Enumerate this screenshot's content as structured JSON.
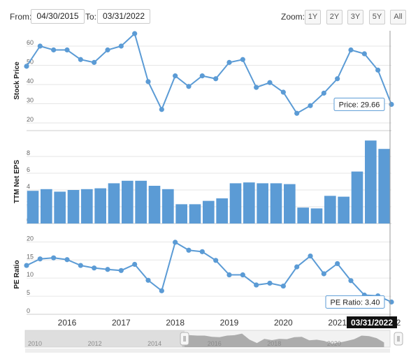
{
  "controls": {
    "from_label": "From:",
    "from_value": "04/30/2015",
    "to_label": "To:",
    "to_value": "03/31/2022",
    "zoom_label": "Zoom:",
    "zoom_buttons": [
      "1Y",
      "2Y",
      "3Y",
      "5Y",
      "All"
    ]
  },
  "colors": {
    "line": "#5b9bd5",
    "bar": "#5b9bd5",
    "grid": "#e6e6e6",
    "axis": "#333333"
  },
  "chart_data": [
    {
      "type": "line",
      "ylabel": "Stock Price",
      "ylim": [
        16,
        68
      ],
      "yticks": [
        20,
        30,
        40,
        50,
        60
      ],
      "x": [
        2015.25,
        2015.5,
        2015.75,
        2016.0,
        2016.25,
        2016.5,
        2016.75,
        2017.0,
        2017.25,
        2017.5,
        2017.75,
        2018.0,
        2018.25,
        2018.5,
        2018.75,
        2019.0,
        2019.25,
        2019.5,
        2019.75,
        2020.0,
        2020.25,
        2020.5,
        2020.75,
        2021.0,
        2021.25,
        2021.5,
        2021.75,
        2022.0
      ],
      "values": [
        49.5,
        60,
        58,
        58,
        53,
        51.5,
        58,
        60,
        66.5,
        41.5,
        27,
        44.5,
        39,
        44.5,
        43,
        51.5,
        53,
        38.5,
        41,
        36,
        25,
        29,
        35.5,
        43,
        58,
        56,
        47.5,
        29.66
      ],
      "tooltip": "Price: 29.66"
    },
    {
      "type": "bar",
      "ylabel": "TTM Net EPS",
      "ylim": [
        0,
        10
      ],
      "yticks": [
        0,
        2,
        4,
        6,
        8
      ],
      "x": [
        2015.25,
        2015.5,
        2015.75,
        2016.0,
        2016.25,
        2016.5,
        2016.75,
        2017.0,
        2017.25,
        2017.5,
        2017.75,
        2018.0,
        2018.25,
        2018.5,
        2018.75,
        2019.0,
        2019.25,
        2019.5,
        2019.75,
        2020.0,
        2020.25,
        2020.5,
        2020.75,
        2021.0,
        2021.25,
        2021.5,
        2021.75
      ],
      "values": [
        3.9,
        4.1,
        3.8,
        4.0,
        4.1,
        4.2,
        4.8,
        5.1,
        5.1,
        4.5,
        4.1,
        2.3,
        2.3,
        2.7,
        3.0,
        4.8,
        4.9,
        4.8,
        4.8,
        4.7,
        1.9,
        1.8,
        3.3,
        3.2,
        6.2,
        9.9,
        8.9
      ]
    },
    {
      "type": "line",
      "ylabel": "PE Ratio",
      "ylim": [
        0,
        22
      ],
      "yticks": [
        0,
        5,
        10,
        15,
        20
      ],
      "x": [
        2015.25,
        2015.5,
        2015.75,
        2016.0,
        2016.25,
        2016.5,
        2016.75,
        2017.0,
        2017.25,
        2017.5,
        2017.75,
        2018.0,
        2018.25,
        2018.5,
        2018.75,
        2019.0,
        2019.25,
        2019.5,
        2019.75,
        2020.0,
        2020.25,
        2020.5,
        2020.75,
        2021.0,
        2021.25,
        2021.5,
        2021.75,
        2022.0
      ],
      "values": [
        13.5,
        15.3,
        15.6,
        15.1,
        13.5,
        12.8,
        12.4,
        12.1,
        13.8,
        9.4,
        6.5,
        19.9,
        17.7,
        17.3,
        14.9,
        10.9,
        10.9,
        8.1,
        8.6,
        7.8,
        13.1,
        16.1,
        11.2,
        14.0,
        9.3,
        5.3,
        5.1,
        3.4
      ],
      "tooltip": "PE Ratio: 3.40"
    }
  ],
  "xaxis": {
    "range": [
      2015.25,
      2022.0
    ],
    "ticks": [
      2016,
      2017,
      2018,
      2019,
      2020,
      2021,
      2022
    ],
    "tick_labels": [
      "2016",
      "2017",
      "2018",
      "2019",
      "2020",
      "2021",
      "2022"
    ],
    "crosshair_label": "03/31/2022"
  },
  "navigator": {
    "range": [
      2010,
      2022.2
    ],
    "labels": [
      "2010",
      "2012",
      "2014",
      "2016",
      "2018",
      "2020"
    ],
    "label_years": [
      2010,
      2012,
      2014,
      2016,
      2018,
      2020
    ],
    "selected": [
      2015.33,
      2022.25
    ]
  }
}
